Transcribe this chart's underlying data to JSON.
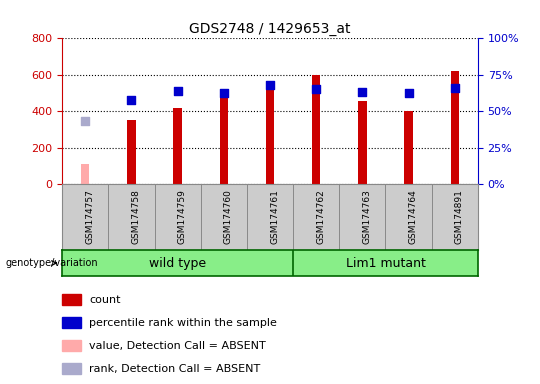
{
  "title": "GDS2748 / 1429653_at",
  "samples": [
    "GSM174757",
    "GSM174758",
    "GSM174759",
    "GSM174760",
    "GSM174761",
    "GSM174762",
    "GSM174763",
    "GSM174764",
    "GSM174891"
  ],
  "count_values": [
    null,
    350,
    420,
    500,
    560,
    600,
    455,
    400,
    620
  ],
  "count_absent": [
    110,
    null,
    null,
    null,
    null,
    null,
    null,
    null,
    null
  ],
  "percentile_values": [
    null,
    465,
    510,
    500,
    545,
    525,
    505,
    500,
    530
  ],
  "percentile_absent": [
    345,
    null,
    null,
    null,
    null,
    null,
    null,
    null,
    null
  ],
  "wild_type_range": [
    0,
    4
  ],
  "lim1_range": [
    5,
    8
  ],
  "ylim_left": [
    0,
    800
  ],
  "ylim_right": [
    0,
    100
  ],
  "yticks_left": [
    0,
    200,
    400,
    600,
    800
  ],
  "yticks_right": [
    0,
    25,
    50,
    75,
    100
  ],
  "ytick_right_labels": [
    "0%",
    "25%",
    "50%",
    "75%",
    "100%"
  ],
  "left_axis_color": "#cc0000",
  "right_axis_color": "#0000cc",
  "bar_color_present": "#cc0000",
  "bar_color_absent": "#ffaaaa",
  "dot_color_present": "#0000cc",
  "dot_color_absent": "#aaaacc",
  "group_color": "#88ee88",
  "group_border": "#006600",
  "tick_area_color": "#cccccc",
  "background_color": "#ffffff",
  "bar_width": 0.18,
  "dot_size": 30,
  "legend_items": [
    {
      "label": "count",
      "color": "#cc0000"
    },
    {
      "label": "percentile rank within the sample",
      "color": "#0000cc"
    },
    {
      "label": "value, Detection Call = ABSENT",
      "color": "#ffaaaa"
    },
    {
      "label": "rank, Detection Call = ABSENT",
      "color": "#aaaacc"
    }
  ]
}
